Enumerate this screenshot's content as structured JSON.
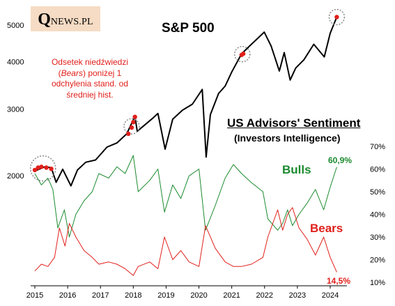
{
  "logo": {
    "q": "Q",
    "rest": "NEWS.PL"
  },
  "chart_data": {
    "title": "S&P 500",
    "subtitle": "US Advisors' Sentiment",
    "subtitle2": "(Investors Intelligence)",
    "annotation": {
      "before": "Odsetek niedźwiedzi (",
      "italic": "Bears",
      "after": ") poniżej 1 odchylenia stand. od średniej hist."
    },
    "x_ticks": [
      "2015",
      "2016",
      "2017",
      "2018",
      "2019",
      "2020",
      "2021",
      "2022",
      "2023",
      "2024"
    ],
    "left_axis": {
      "ticks": [
        "2000",
        "3000",
        "4000",
        "5000"
      ],
      "tick_values": [
        2000,
        3000,
        4000,
        5000
      ],
      "scale": "log"
    },
    "right_axis": {
      "ticks": [
        "10%",
        "20%",
        "30%",
        "40%",
        "50%",
        "60%",
        "70%"
      ],
      "tick_values": [
        10,
        20,
        30,
        40,
        50,
        60,
        70
      ]
    },
    "series": [
      {
        "name": "S&P 500",
        "color": "#000000",
        "points": [
          [
            2015.0,
            2058
          ],
          [
            2015.3,
            2110
          ],
          [
            2015.5,
            2100
          ],
          [
            2015.65,
            1920
          ],
          [
            2015.85,
            2080
          ],
          [
            2016.1,
            1880
          ],
          [
            2016.3,
            2070
          ],
          [
            2016.55,
            2170
          ],
          [
            2016.85,
            2200
          ],
          [
            2017.2,
            2380
          ],
          [
            2017.5,
            2440
          ],
          [
            2017.8,
            2580
          ],
          [
            2018.05,
            2870
          ],
          [
            2018.12,
            2620
          ],
          [
            2018.6,
            2840
          ],
          [
            2018.75,
            2920
          ],
          [
            2018.97,
            2350
          ],
          [
            2019.2,
            2820
          ],
          [
            2019.5,
            2980
          ],
          [
            2019.8,
            3090
          ],
          [
            2020.1,
            3380
          ],
          [
            2020.22,
            2240
          ],
          [
            2020.35,
            2900
          ],
          [
            2020.6,
            3300
          ],
          [
            2020.8,
            3450
          ],
          [
            2021.0,
            3760
          ],
          [
            2021.3,
            4200
          ],
          [
            2021.6,
            4450
          ],
          [
            2021.99,
            4790
          ],
          [
            2022.2,
            4400
          ],
          [
            2022.45,
            3780
          ],
          [
            2022.6,
            4230
          ],
          [
            2022.78,
            3580
          ],
          [
            2022.95,
            3850
          ],
          [
            2023.2,
            4050
          ],
          [
            2023.5,
            4450
          ],
          [
            2023.82,
            4120
          ],
          [
            2024.0,
            4760
          ],
          [
            2024.2,
            5250
          ]
        ]
      },
      {
        "name": "Bulls",
        "color": "#1b8a2e",
        "points": [
          [
            2015.0,
            58
          ],
          [
            2015.2,
            53
          ],
          [
            2015.4,
            56
          ],
          [
            2015.55,
            51
          ],
          [
            2015.7,
            34
          ],
          [
            2015.9,
            42
          ],
          [
            2016.05,
            30
          ],
          [
            2016.25,
            40
          ],
          [
            2016.5,
            46
          ],
          [
            2016.75,
            50
          ],
          [
            2016.95,
            58
          ],
          [
            2017.25,
            56
          ],
          [
            2017.5,
            61
          ],
          [
            2017.75,
            58
          ],
          [
            2018.0,
            66
          ],
          [
            2018.15,
            50
          ],
          [
            2018.5,
            55
          ],
          [
            2018.75,
            60
          ],
          [
            2018.95,
            41
          ],
          [
            2019.2,
            53
          ],
          [
            2019.45,
            47
          ],
          [
            2019.7,
            57
          ],
          [
            2020.0,
            60
          ],
          [
            2020.2,
            33
          ],
          [
            2020.5,
            44
          ],
          [
            2020.8,
            56
          ],
          [
            2021.05,
            62
          ],
          [
            2021.3,
            58
          ],
          [
            2021.6,
            54
          ],
          [
            2021.95,
            50
          ],
          [
            2022.1,
            38
          ],
          [
            2022.4,
            33
          ],
          [
            2022.55,
            36
          ],
          [
            2022.7,
            42
          ],
          [
            2022.85,
            35
          ],
          [
            2023.05,
            40
          ],
          [
            2023.3,
            45
          ],
          [
            2023.55,
            51
          ],
          [
            2023.8,
            42
          ],
          [
            2024.0,
            52
          ],
          [
            2024.2,
            60.9
          ]
        ]
      },
      {
        "name": "Bears",
        "color": "#e0201b",
        "points": [
          [
            2015.0,
            15
          ],
          [
            2015.2,
            18
          ],
          [
            2015.4,
            17
          ],
          [
            2015.6,
            21
          ],
          [
            2015.75,
            34
          ],
          [
            2015.92,
            26
          ],
          [
            2016.05,
            36
          ],
          [
            2016.25,
            30
          ],
          [
            2016.5,
            24
          ],
          [
            2016.75,
            21
          ],
          [
            2016.95,
            18
          ],
          [
            2017.25,
            19
          ],
          [
            2017.5,
            18
          ],
          [
            2017.75,
            16
          ],
          [
            2018.0,
            13
          ],
          [
            2018.15,
            17
          ],
          [
            2018.5,
            19
          ],
          [
            2018.75,
            16
          ],
          [
            2018.95,
            30
          ],
          [
            2019.2,
            20
          ],
          [
            2019.45,
            24
          ],
          [
            2019.7,
            19
          ],
          [
            2020.0,
            17
          ],
          [
            2020.2,
            35
          ],
          [
            2020.5,
            25
          ],
          [
            2020.8,
            19
          ],
          [
            2021.05,
            17
          ],
          [
            2021.3,
            17
          ],
          [
            2021.6,
            18
          ],
          [
            2021.95,
            21
          ],
          [
            2022.1,
            30
          ],
          [
            2022.4,
            42
          ],
          [
            2022.55,
            33
          ],
          [
            2022.7,
            40
          ],
          [
            2022.85,
            43
          ],
          [
            2023.05,
            34
          ],
          [
            2023.3,
            29
          ],
          [
            2023.55,
            22
          ],
          [
            2023.8,
            30
          ],
          [
            2024.0,
            21
          ],
          [
            2024.2,
            14.5
          ]
        ]
      }
    ],
    "bulls_last_label": "60,9%",
    "bears_last_label": "14,5%",
    "highlight_points": [
      [
        2015.0,
        2070
      ],
      [
        2015.1,
        2100
      ],
      [
        2015.2,
        2110
      ],
      [
        2015.35,
        2100
      ],
      [
        2015.5,
        2085
      ],
      [
        2017.85,
        2580
      ],
      [
        2017.95,
        2680
      ],
      [
        2018.0,
        2770
      ],
      [
        2018.05,
        2860
      ],
      [
        2021.3,
        4170
      ],
      [
        2021.35,
        4200
      ],
      [
        2024.2,
        5250
      ]
    ],
    "highlight_circles": [
      [
        2015.25,
        2090
      ],
      [
        2017.95,
        2700
      ],
      [
        2021.32,
        4190
      ],
      [
        2024.2,
        5250
      ]
    ]
  }
}
